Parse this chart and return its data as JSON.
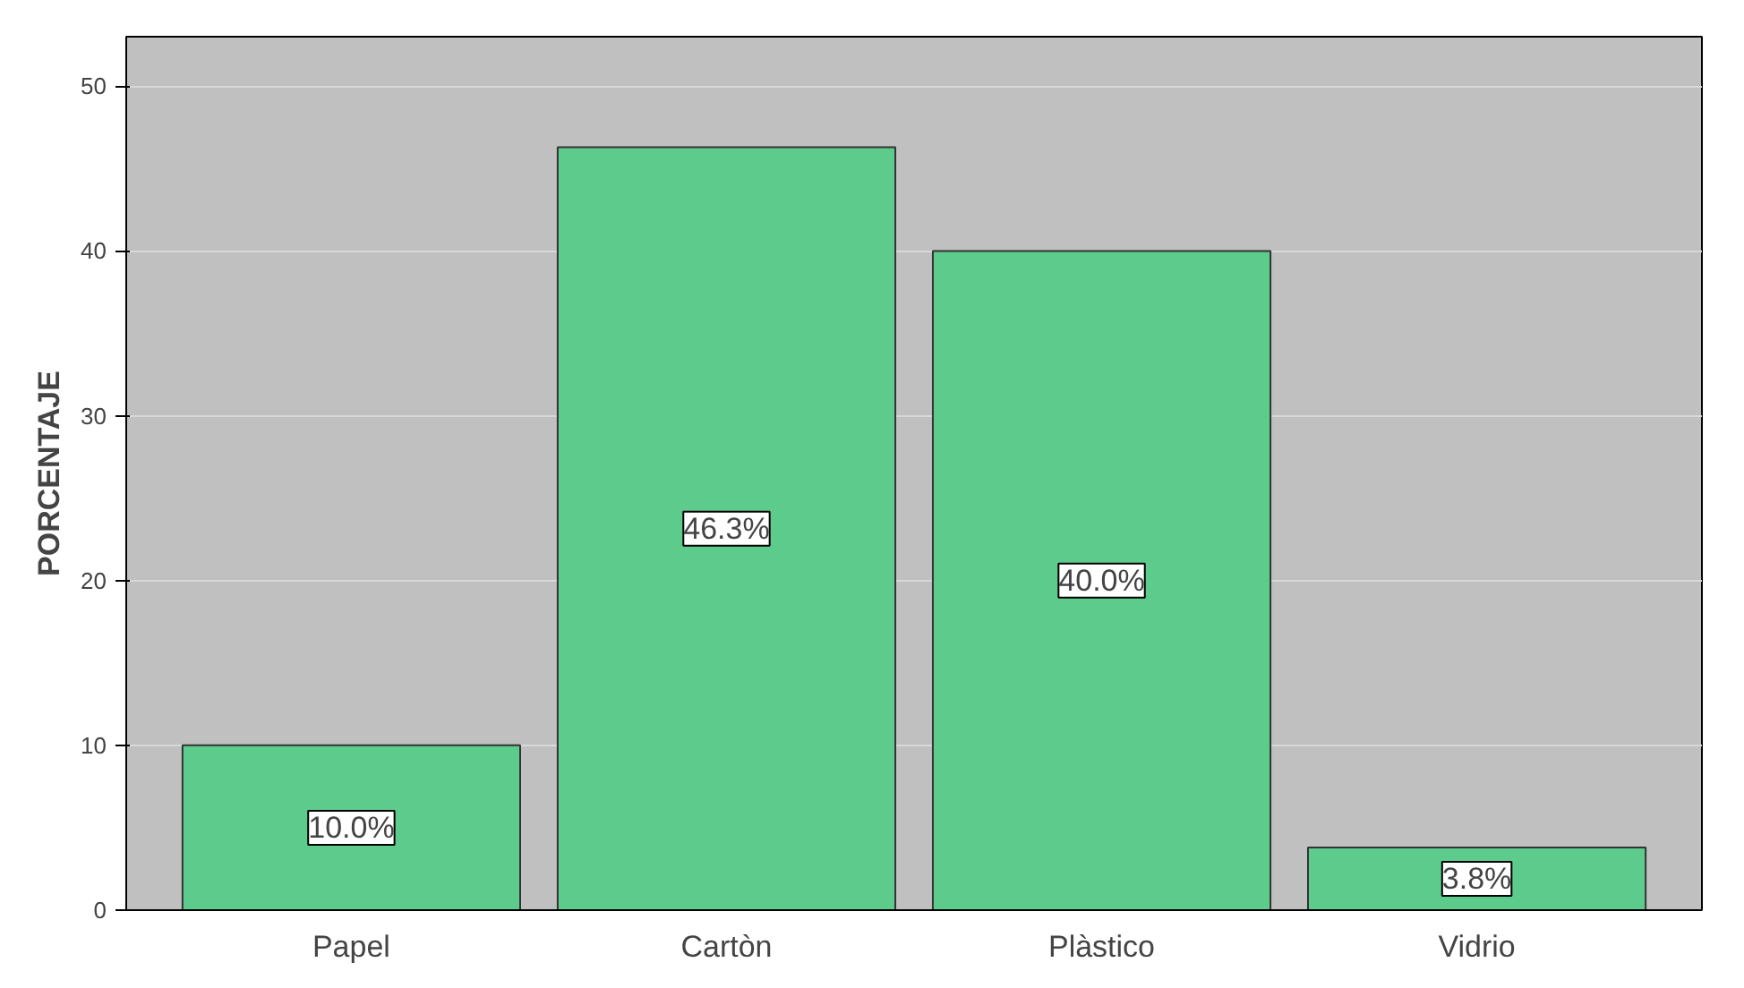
{
  "chart_data": {
    "type": "bar",
    "ylabel": "PORCENTAJE",
    "categories": [
      "Papel",
      "Cartòn",
      "Plàstico",
      "Vidrio"
    ],
    "values": [
      10.0,
      46.3,
      40.0,
      3.8
    ],
    "value_labels": [
      "10.0%",
      "46.3%",
      "40.0%",
      "3.8%"
    ],
    "color": "#5ccb8b",
    "ylim": [
      0,
      53
    ],
    "yticks": [
      0,
      10,
      20,
      30,
      40,
      50
    ],
    "grid": "y"
  }
}
